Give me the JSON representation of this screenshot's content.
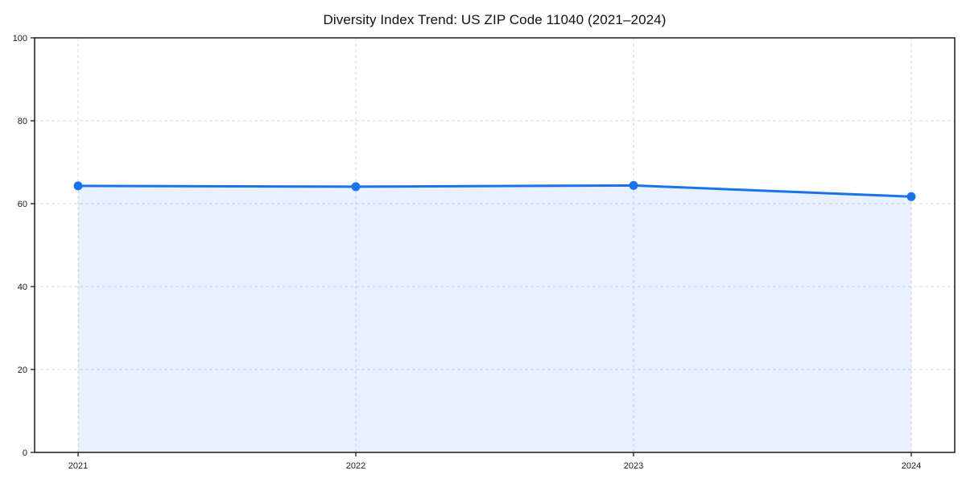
{
  "chart_data": {
    "type": "area",
    "title": "Diversity Index Trend: US ZIP Code 11040 (2021–2024)",
    "xlabel": "",
    "ylabel": "",
    "x": [
      2021,
      2022,
      2023,
      2024
    ],
    "categories": [
      "2021",
      "2022",
      "2023",
      "2024"
    ],
    "series": [
      {
        "name": "Diversity Index",
        "values": [
          64.3,
          64.1,
          64.4,
          61.7
        ]
      }
    ],
    "ylim": [
      0,
      100
    ],
    "yticks": [
      0,
      20,
      40,
      60,
      80,
      100
    ],
    "grid": "on",
    "grid_style": "dashed",
    "legend_position": "none",
    "colors": {
      "line": "#1a73e8",
      "marker": "#1a73e8",
      "fill": "rgba(26,115,232,0.10)",
      "gridline": "#d9d9d9",
      "axis": "#1a1a1a",
      "tick_text": "#1a1a1a",
      "background": "#ffffff"
    }
  }
}
